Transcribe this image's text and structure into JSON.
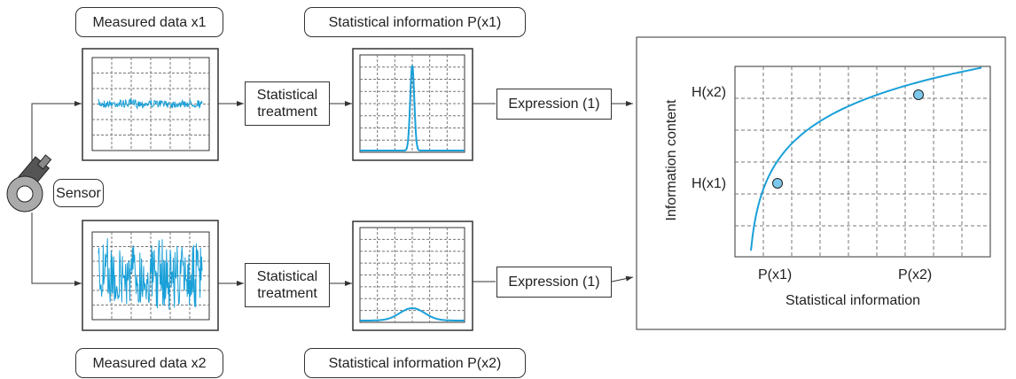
{
  "sensor": {
    "label": "Sensor"
  },
  "paths": [
    {
      "measured_label": "Measured data x1",
      "treatment": "Statistical treatment",
      "statistical_label": "Statistical information P(x1)",
      "expression": "Expression (1)"
    },
    {
      "measured_label": "Measured data x2",
      "treatment": "Statistical treatment",
      "statistical_label": "Statistical information P(x2)",
      "expression": "Expression (1)"
    }
  ],
  "graph": {
    "y_label": "Information content",
    "x_label": "Statistical information",
    "y_points": [
      "H(x2)",
      "H(x1)"
    ],
    "x_points": [
      "P(x1)",
      "P(x2)"
    ]
  }
}
